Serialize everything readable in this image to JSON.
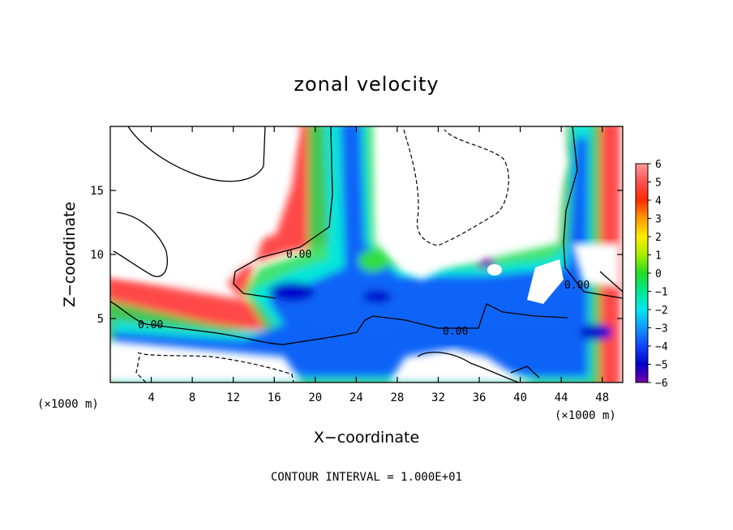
{
  "chart_data": {
    "type": "heatmap",
    "title": "zonal velocity",
    "xlabel": "X−coordinate",
    "ylabel": "Z−coordinate",
    "x_unit_left": "(×1000 m)",
    "x_unit_right": "(×1000 m)",
    "xlim": [
      0,
      50
    ],
    "ylim": [
      0,
      20
    ],
    "x_ticks": [
      4,
      8,
      12,
      16,
      20,
      24,
      28,
      32,
      36,
      40,
      44,
      48
    ],
    "y_ticks": [
      5,
      10,
      15
    ],
    "colorbar": {
      "min": -6,
      "max": 6,
      "tick_labels": [
        "6",
        "5",
        "4",
        "3",
        "2",
        "1",
        "0",
        "−1",
        "−2",
        "−3",
        "−4",
        "−5",
        "−6"
      ],
      "tick_values": [
        6,
        5,
        4,
        3,
        2,
        1,
        0,
        -1,
        -2,
        -3,
        -4,
        -5,
        -6
      ]
    },
    "contour_labels": [
      "0.00",
      "0.00",
      "0.00",
      "0.00"
    ],
    "footer": "CONTOUR INTERVAL = 1.000E+01",
    "grid": false
  }
}
